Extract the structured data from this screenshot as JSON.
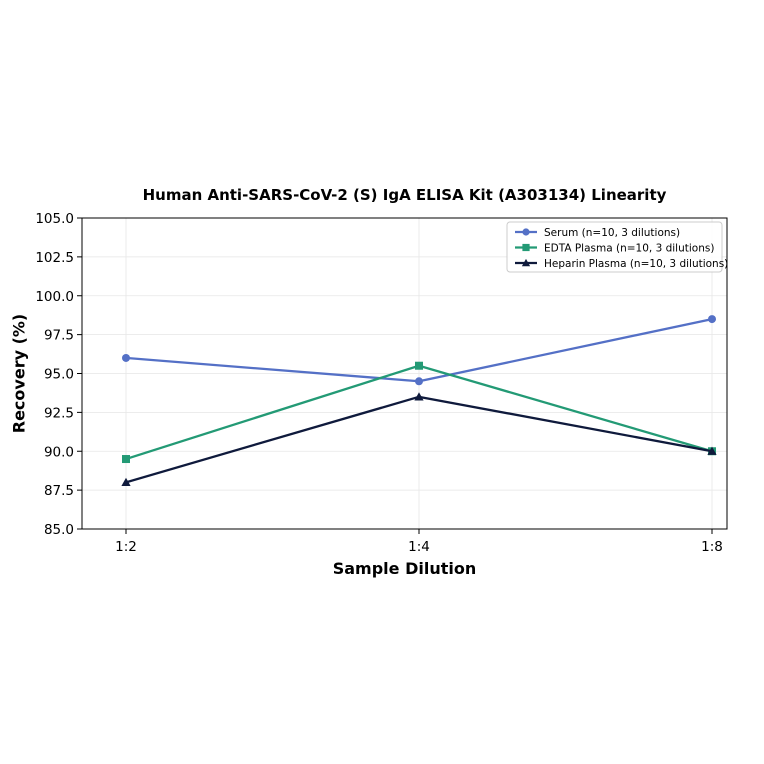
{
  "chart_data": {
    "type": "line",
    "title": "Human Anti-SARS-CoV-2 (S) IgA ELISA Kit (A303134) Linearity",
    "xlabel": "Sample Dilution",
    "ylabel": "Recovery (%)",
    "categories": [
      "1:2",
      "1:4",
      "1:8"
    ],
    "ylim": [
      85.0,
      105.0
    ],
    "yticks": [
      "85.0",
      "87.5",
      "90.0",
      "92.5",
      "95.0",
      "97.5",
      "100.0",
      "102.5",
      "105.0"
    ],
    "grid": true,
    "legend_position": "top-right",
    "series": [
      {
        "name": "Serum (n=10, 3 dilutions)",
        "values": [
          96.0,
          94.5,
          98.5
        ],
        "color": "#5470c6",
        "marker": "circle"
      },
      {
        "name": "EDTA Plasma (n=10, 3 dilutions)",
        "values": [
          89.5,
          95.5,
          90.0
        ],
        "color": "#239a75",
        "marker": "square"
      },
      {
        "name": "Heparin Plasma (n=10, 3 dilutions)",
        "values": [
          88.0,
          93.5,
          90.0
        ],
        "color": "#0f1a3c",
        "marker": "triangle"
      }
    ]
  }
}
